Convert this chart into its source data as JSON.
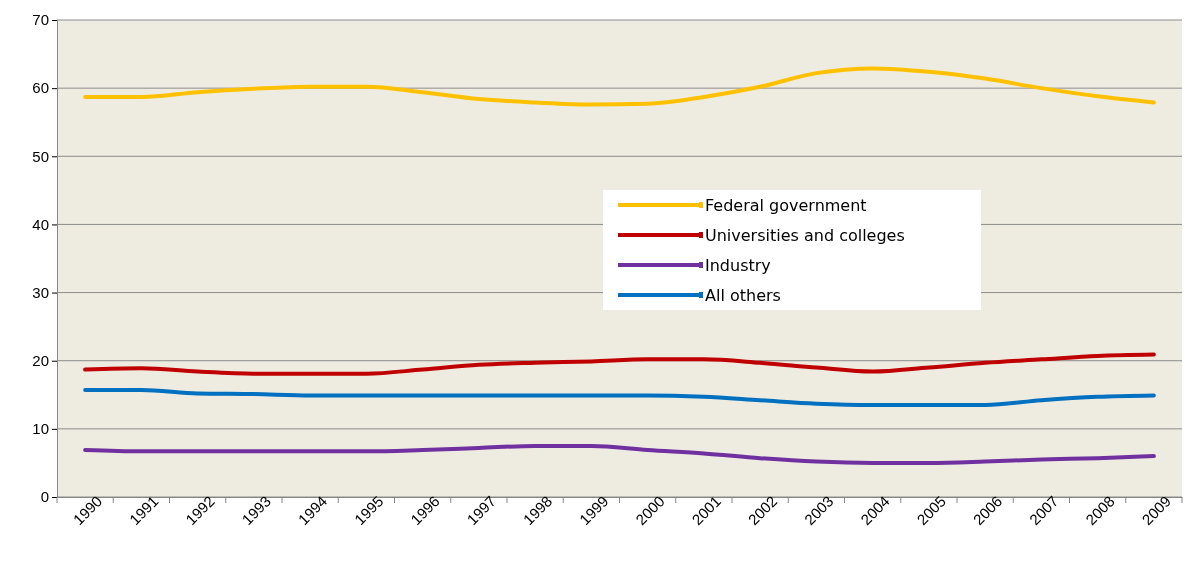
{
  "chart_data": {
    "type": "line",
    "categories": [
      "1990",
      "1991",
      "1992",
      "1993",
      "1994",
      "1995",
      "1996",
      "1997",
      "1998",
      "1999",
      "2000",
      "2001",
      "2002",
      "2003",
      "2004",
      "2005",
      "2006",
      "2007",
      "2008",
      "2009"
    ],
    "series": [
      {
        "name": "Federal government",
        "color": "#ffc000",
        "values": [
          58.7,
          58.7,
          59.4,
          59.9,
          60.2,
          60.2,
          59.4,
          58.4,
          57.9,
          57.6,
          57.7,
          58.7,
          60.2,
          62.2,
          62.9,
          62.4,
          61.4,
          60.0,
          58.8,
          57.9
        ]
      },
      {
        "name": "Universities and colleges",
        "color": "#c00000",
        "values": [
          18.7,
          18.9,
          18.4,
          18.1,
          18.1,
          18.1,
          18.7,
          19.4,
          19.7,
          19.9,
          20.2,
          20.2,
          19.7,
          19.0,
          18.4,
          19.0,
          19.7,
          20.2,
          20.7,
          20.9
        ]
      },
      {
        "name": "Industry",
        "color": "#7030a0",
        "values": [
          6.9,
          6.7,
          6.7,
          6.7,
          6.7,
          6.7,
          6.9,
          7.2,
          7.5,
          7.5,
          6.9,
          6.4,
          5.7,
          5.2,
          5.0,
          5.0,
          5.2,
          5.5,
          5.7,
          6.0
        ]
      },
      {
        "name": "All others",
        "color": "#0070c0",
        "values": [
          15.7,
          15.7,
          15.2,
          15.1,
          14.9,
          14.9,
          14.9,
          14.9,
          14.9,
          14.9,
          14.9,
          14.7,
          14.2,
          13.7,
          13.5,
          13.5,
          13.5,
          14.2,
          14.7,
          14.9
        ]
      }
    ],
    "ylim": [
      0,
      70
    ],
    "yticks": [
      0,
      10,
      20,
      30,
      40,
      50,
      60,
      70
    ],
    "grid": "y",
    "legend": "center",
    "marker": "none",
    "line_style": "solid"
  }
}
